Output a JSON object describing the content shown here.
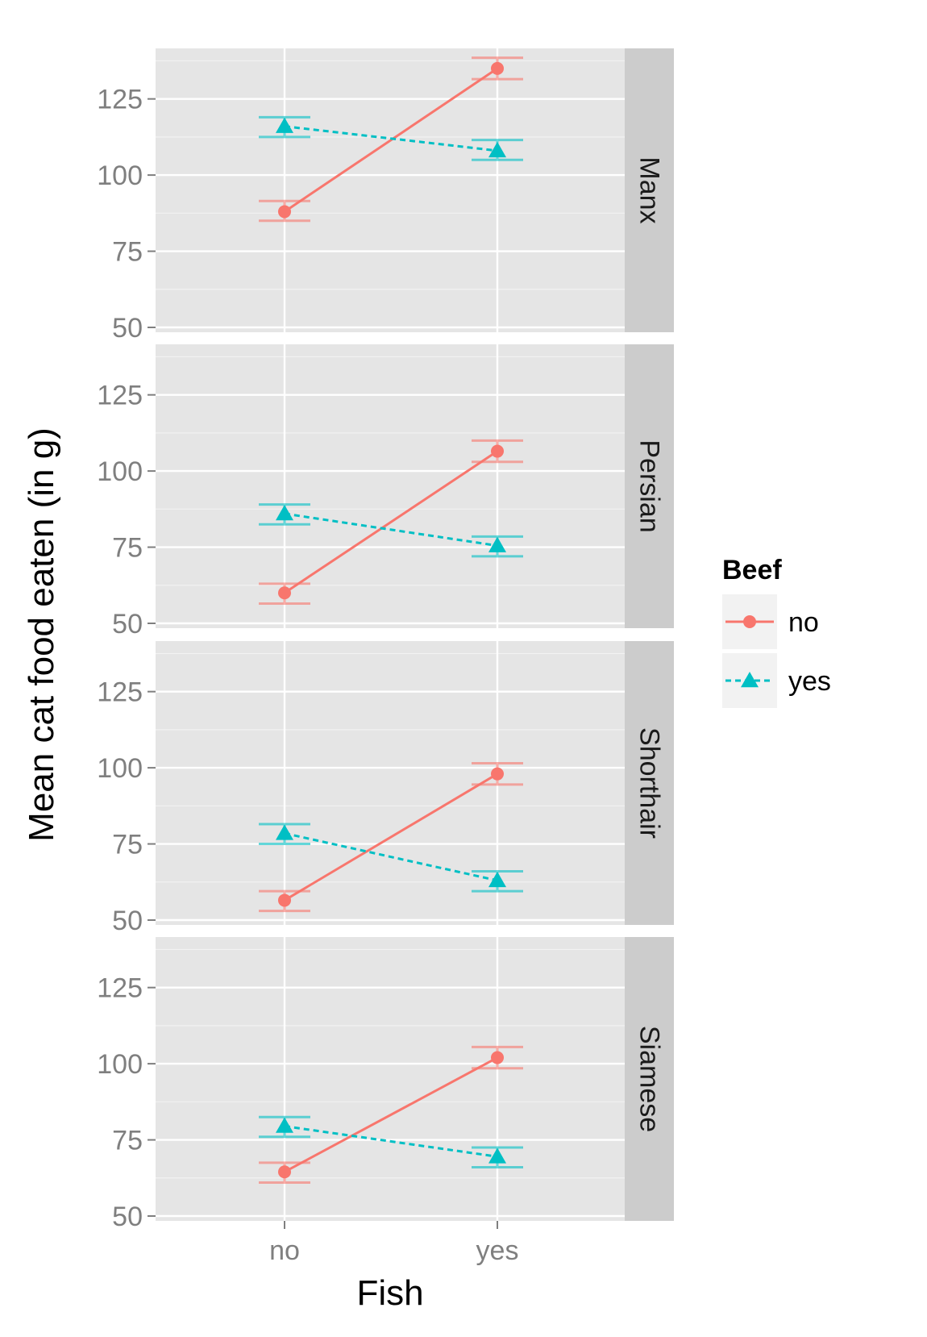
{
  "chart_data": {
    "type": "line",
    "xlabel": "Fish",
    "ylabel": "Mean cat food eaten (in g)",
    "categories": [
      "no",
      "yes"
    ],
    "ylim": [
      50,
      140
    ],
    "yticks": [
      50,
      75,
      100,
      125
    ],
    "y_tick_labels": [
      "50",
      "75",
      "100",
      "125"
    ],
    "grid": true,
    "legend": {
      "title": "Beef",
      "position": "right",
      "entries": [
        "no",
        "yes"
      ]
    },
    "series_styles": [
      {
        "color": "#F8766D",
        "marker": "circle",
        "line": "solid"
      },
      {
        "color": "#00BFC4",
        "marker": "triangle",
        "line": "dashed"
      }
    ],
    "panels": [
      {
        "label": "Manx",
        "series": [
          {
            "name": "no",
            "values": [
              88,
              135
            ],
            "lower": [
              85,
              131.5
            ],
            "upper": [
              91.5,
              138.5
            ]
          },
          {
            "name": "yes",
            "values": [
              116,
              108
            ],
            "lower": [
              112.5,
              105
            ],
            "upper": [
              119,
              111.5
            ]
          }
        ]
      },
      {
        "label": "Persian",
        "series": [
          {
            "name": "no",
            "values": [
              60,
              106.5
            ],
            "lower": [
              56.5,
              103
            ],
            "upper": [
              63,
              110
            ]
          },
          {
            "name": "yes",
            "values": [
              86,
              75.5
            ],
            "lower": [
              82.5,
              72
            ],
            "upper": [
              89,
              78.5
            ]
          }
        ]
      },
      {
        "label": "Shorthair",
        "series": [
          {
            "name": "no",
            "values": [
              56.5,
              98
            ],
            "lower": [
              53,
              94.5
            ],
            "upper": [
              59.5,
              101.5
            ]
          },
          {
            "name": "yes",
            "values": [
              78.5,
              63
            ],
            "lower": [
              75,
              59.5
            ],
            "upper": [
              81.5,
              66
            ]
          }
        ]
      },
      {
        "label": "Siamese",
        "series": [
          {
            "name": "no",
            "values": [
              64.5,
              102
            ],
            "lower": [
              61,
              98.5
            ],
            "upper": [
              67.5,
              105.5
            ]
          },
          {
            "name": "yes",
            "values": [
              79.5,
              69.5
            ],
            "lower": [
              76,
              66
            ],
            "upper": [
              82.5,
              72.5
            ]
          }
        ]
      }
    ]
  }
}
